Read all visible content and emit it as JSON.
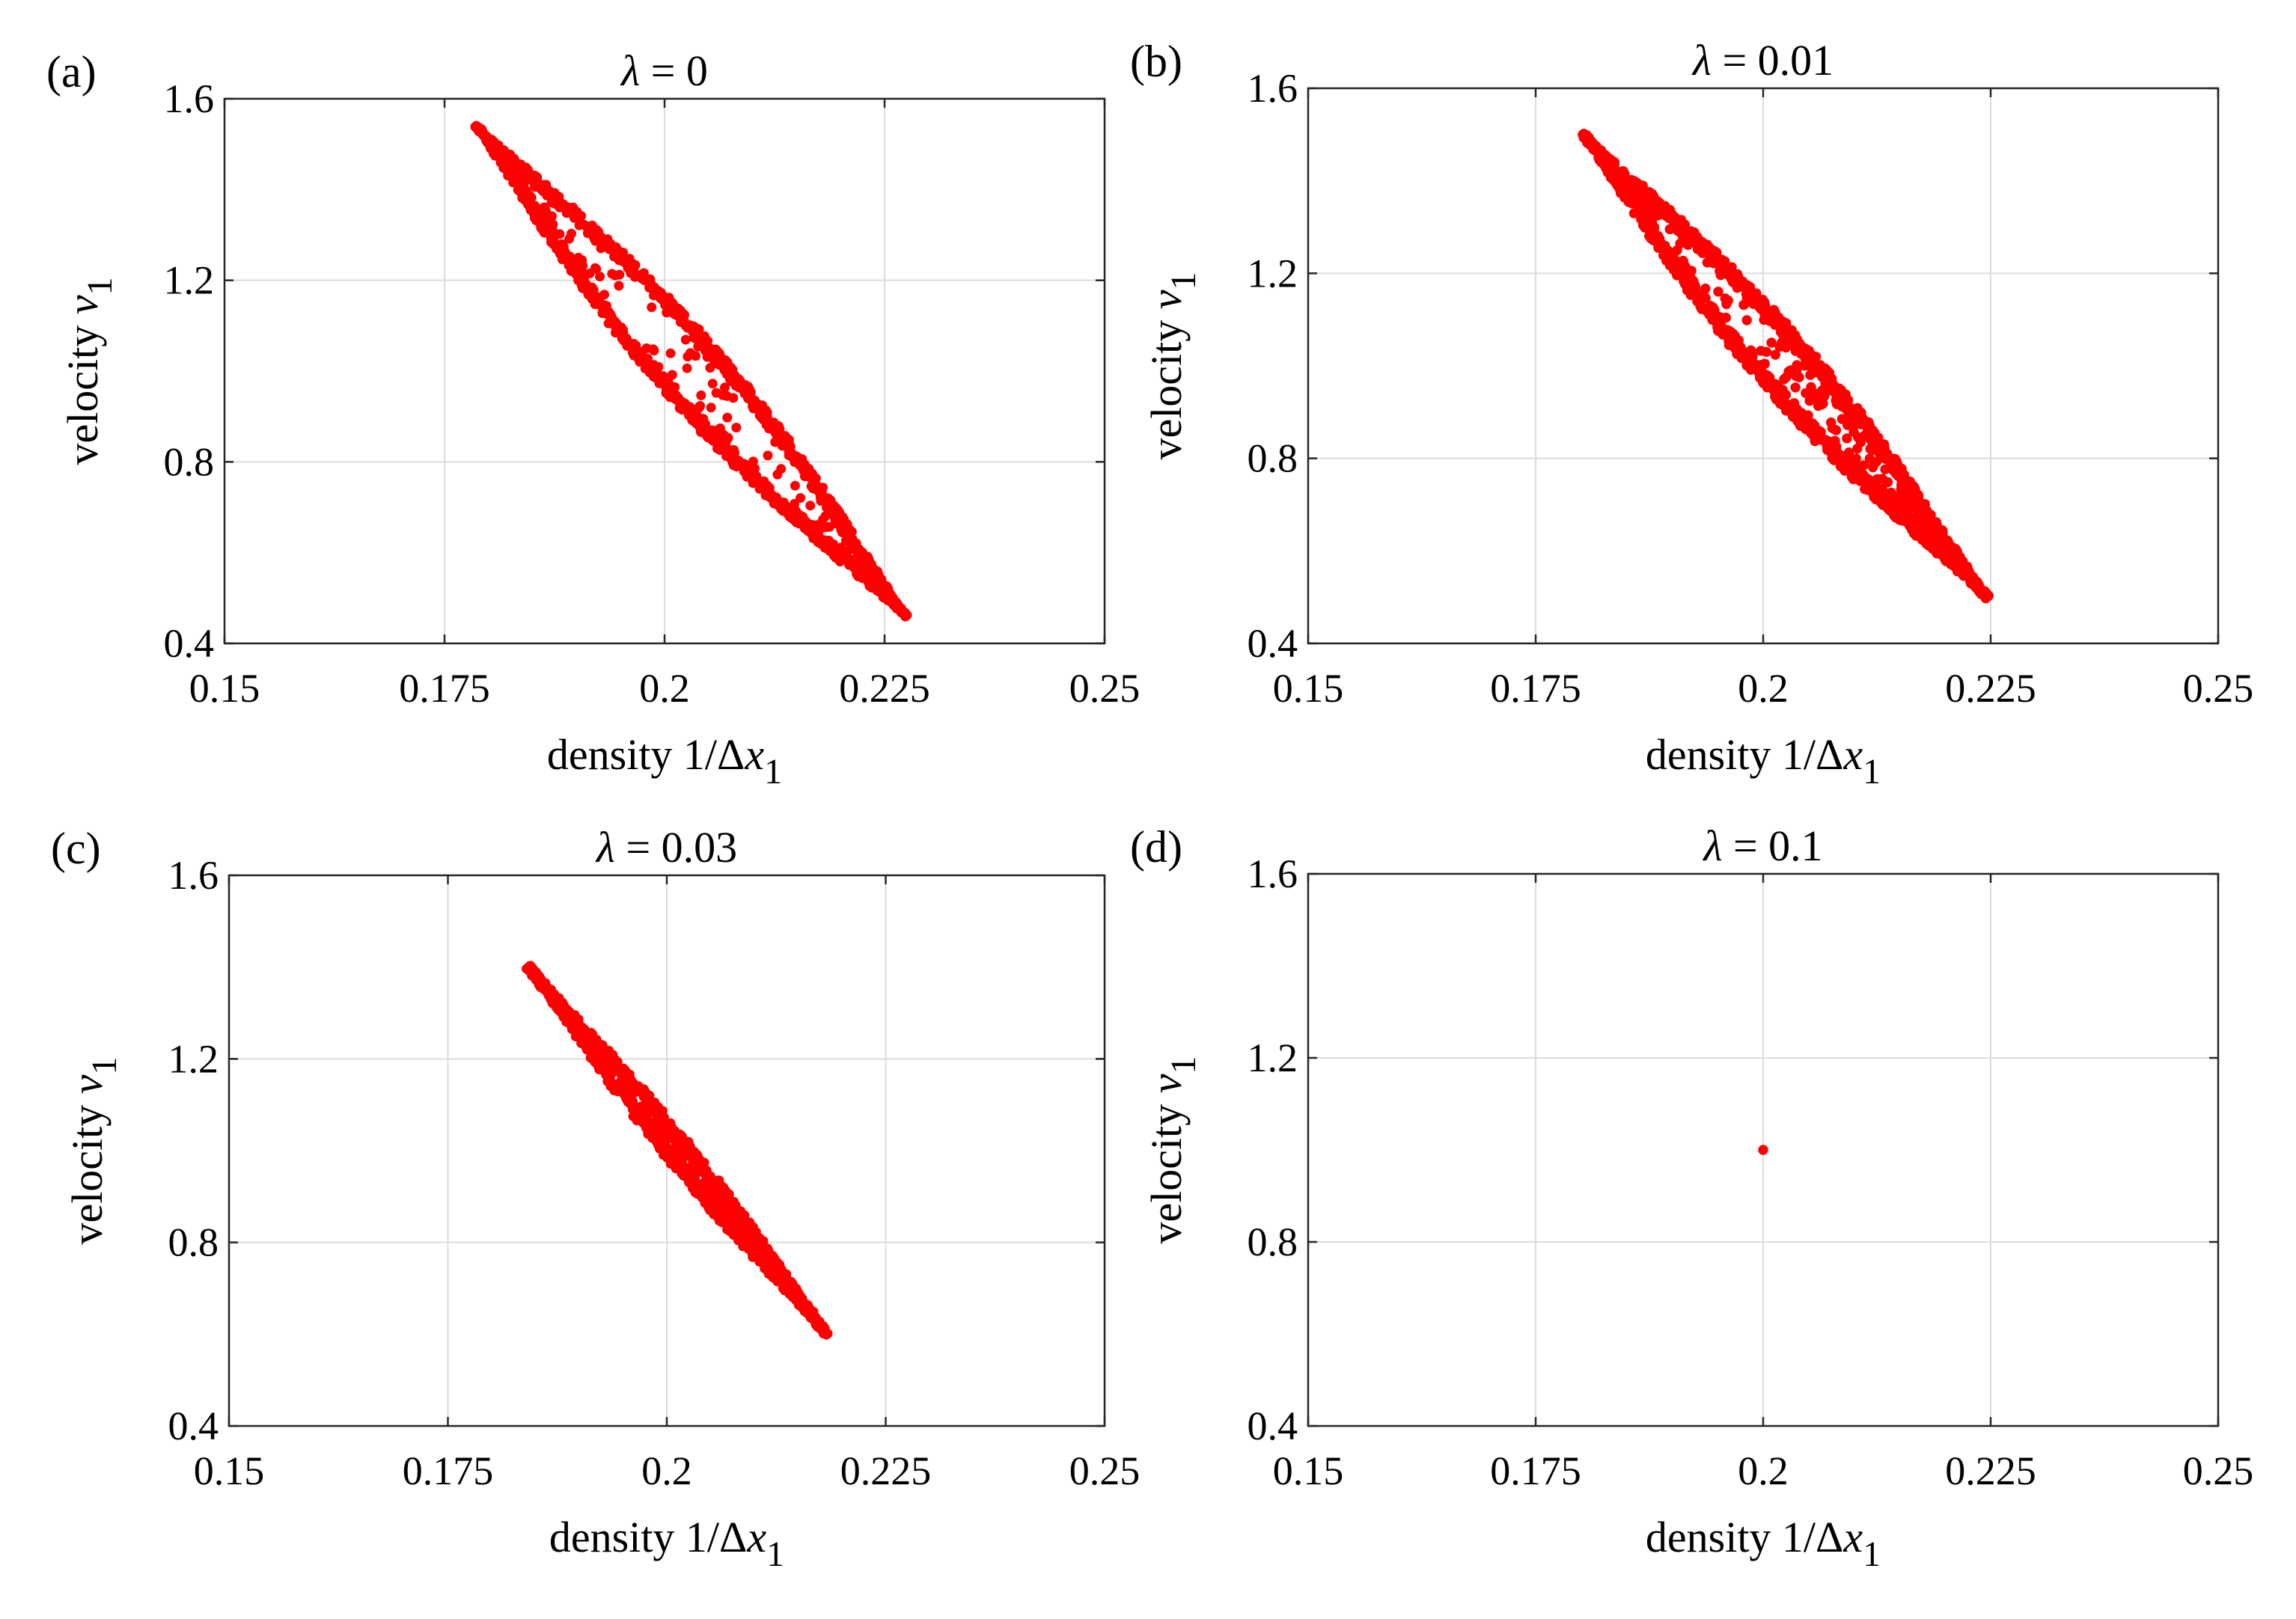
{
  "figure": {
    "panel_count": 4,
    "marker_color": "#ff0000",
    "grid_color": "#dcdcdc",
    "axis_color": "#262626"
  },
  "chart_data": [
    {
      "type": "scatter",
      "panel_label": "(a)",
      "title_symbol": "λ",
      "title_value": "= 0",
      "xlabel_text": "density 1/Δ",
      "xlabel_var": "x",
      "xlabel_sub": "1",
      "ylabel_text": "velocity",
      "ylabel_var": "v",
      "ylabel_sub": "1",
      "xlim": [
        0.15,
        0.25
      ],
      "ylim": [
        0.4,
        1.6
      ],
      "xticks": [
        0.15,
        0.175,
        0.2,
        0.225,
        0.25
      ],
      "xtick_labels": [
        "0.15",
        "0.175",
        "0.2",
        "0.225",
        "0.25"
      ],
      "yticks": [
        0.4,
        0.8,
        1.2,
        1.6
      ],
      "ytick_labels": [
        "0.4",
        "0.8",
        "1.2",
        "1.6"
      ],
      "grid": true,
      "loop": {
        "start": [
          0.1786,
          1.54
        ],
        "end": [
          0.2274,
          0.46
        ],
        "bulge": 0.052
      },
      "fill_density": 0.22,
      "boundary_width": 0.015,
      "marker_radius": 0.0055,
      "seed": 11
    },
    {
      "type": "scatter",
      "panel_label": "(b)",
      "title_symbol": "λ",
      "title_value": "= 0.01",
      "xlabel_text": "density 1/Δ",
      "xlabel_var": "x",
      "xlabel_sub": "1",
      "ylabel_text": "velocity",
      "ylabel_var": "v",
      "ylabel_sub": "1",
      "xlim": [
        0.15,
        0.25
      ],
      "ylim": [
        0.4,
        1.6
      ],
      "xticks": [
        0.15,
        0.175,
        0.2,
        0.225,
        0.25
      ],
      "xtick_labels": [
        "0.15",
        "0.175",
        "0.2",
        "0.225",
        "0.25"
      ],
      "yticks": [
        0.4,
        0.8,
        1.2,
        1.6
      ],
      "ytick_labels": [
        "0.4",
        "0.8",
        "1.2",
        "1.6"
      ],
      "grid": true,
      "loop": {
        "start": [
          0.1802,
          1.5
        ],
        "end": [
          0.2246,
          0.5
        ],
        "bulge": 0.048
      },
      "fill_density": 0.4,
      "boundary_width": 0.018,
      "marker_radius": 0.0055,
      "seed": 23
    },
    {
      "type": "scatter",
      "panel_label": "(c)",
      "title_symbol": "λ",
      "title_value": "= 0.03",
      "xlabel_text": "density 1/Δ",
      "xlabel_var": "x",
      "xlabel_sub": "1",
      "ylabel_text": "velocity",
      "ylabel_var": "v",
      "ylabel_sub": "1",
      "xlim": [
        0.15,
        0.25
      ],
      "ylim": [
        0.4,
        1.6
      ],
      "xticks": [
        0.15,
        0.175,
        0.2,
        0.225,
        0.25
      ],
      "xtick_labels": [
        "0.15",
        "0.175",
        "0.2",
        "0.225",
        "0.25"
      ],
      "yticks": [
        0.4,
        0.8,
        1.2,
        1.6
      ],
      "ytick_labels": [
        "0.4",
        "0.8",
        "1.2",
        "1.6"
      ],
      "grid": true,
      "loop": {
        "start": [
          0.1842,
          1.4
        ],
        "end": [
          0.2183,
          0.6
        ],
        "bulge": 0.03
      },
      "fill_density": 0.65,
      "boundary_width": 0.022,
      "marker_radius": 0.0055,
      "seed": 37
    },
    {
      "type": "scatter",
      "panel_label": "(d)",
      "title_symbol": "λ",
      "title_value": "= 0.1",
      "xlabel_text": "density 1/Δ",
      "xlabel_var": "x",
      "xlabel_sub": "1",
      "ylabel_text": "velocity",
      "ylabel_var": "v",
      "ylabel_sub": "1",
      "xlim": [
        0.15,
        0.25
      ],
      "ylim": [
        0.4,
        1.6
      ],
      "xticks": [
        0.15,
        0.175,
        0.2,
        0.225,
        0.25
      ],
      "xtick_labels": [
        "0.15",
        "0.175",
        "0.2",
        "0.225",
        "0.25"
      ],
      "yticks": [
        0.4,
        0.8,
        1.2,
        1.6
      ],
      "ytick_labels": [
        "0.4",
        "0.8",
        "1.2",
        "1.6"
      ],
      "grid": true,
      "points": [
        [
          0.2,
          1.0
        ]
      ],
      "marker_radius": 0.0055,
      "seed": 41
    }
  ]
}
